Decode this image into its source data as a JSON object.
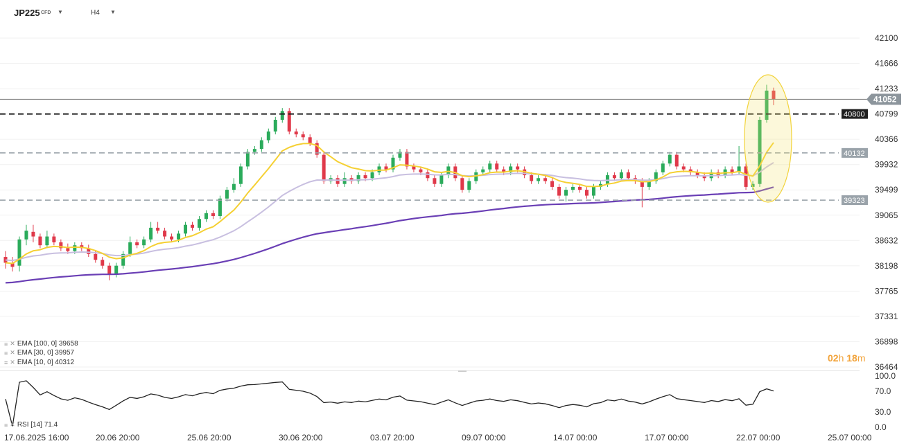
{
  "header": {
    "symbol": "JP225",
    "symbol_type": "CFD",
    "timeframe": "H4"
  },
  "countdown": {
    "hours": "02",
    "h_unit": "h",
    "minutes": "18",
    "m_unit": "m"
  },
  "indicators": [
    {
      "label": "EMA [100, 0] 39658",
      "color": "#6a3fb5"
    },
    {
      "label": "EMA [30, 0] 39957",
      "color": "#c8bfe0"
    },
    {
      "label": "EMA [10, 0] 40312",
      "color": "#f5d033"
    }
  ],
  "rsi_label": "RSI [14] 71.4",
  "colors": {
    "up": "#2bab5b",
    "down": "#e0394a",
    "ema10": "#f5d033",
    "ema30": "#c8bfe0",
    "ema100": "#6a3fb5",
    "highlight": "#f5e36b"
  },
  "chart_data": {
    "type": "candlestick",
    "price_axis_ticks": [
      "42100",
      "41666",
      "41233",
      "40799",
      "40366",
      "39932",
      "39499",
      "39065",
      "38632",
      "38198",
      "37765",
      "37331",
      "36898",
      "36464"
    ],
    "ylim": [
      36464,
      42100
    ],
    "time_axis_labels": [
      "17.06.2025 16:00",
      "20.06 20:00",
      "25.06 20:00",
      "30.06 20:00",
      "03.07 20:00",
      "09.07 00:00",
      "14.07 00:00",
      "17.07 00:00",
      "22.07 00:00",
      "25.07 00:00"
    ],
    "current_price": "41052",
    "levels": [
      {
        "value": 40800,
        "label": "40800",
        "style": "dark-dashed"
      },
      {
        "value": 40132,
        "label": "40132",
        "style": "grey-dashed"
      },
      {
        "value": 39323,
        "label": "39323",
        "style": "grey-dashed"
      }
    ],
    "ohlc": [
      [
        38350,
        38250,
        38450,
        38150
      ],
      [
        38250,
        38180,
        38350,
        38100
      ],
      [
        38200,
        38650,
        38700,
        38100
      ],
      [
        38650,
        38800,
        38900,
        38550
      ],
      [
        38780,
        38700,
        38900,
        38600
      ],
      [
        38700,
        38550,
        38750,
        38500
      ],
      [
        38550,
        38700,
        38800,
        38500
      ],
      [
        38700,
        38600,
        38750,
        38550
      ],
      [
        38600,
        38500,
        38650,
        38450
      ],
      [
        38500,
        38450,
        38580,
        38400
      ],
      [
        38450,
        38550,
        38600,
        38400
      ],
      [
        38550,
        38500,
        38600,
        38450
      ],
      [
        38500,
        38400,
        38560,
        38350
      ],
      [
        38400,
        38300,
        38450,
        38250
      ],
      [
        38300,
        38200,
        38350,
        38150
      ],
      [
        38200,
        38050,
        38250,
        37950
      ],
      [
        38050,
        38200,
        38250,
        38000
      ],
      [
        38200,
        38400,
        38450,
        38150
      ],
      [
        38400,
        38600,
        38700,
        38350
      ],
      [
        38600,
        38550,
        38650,
        38500
      ],
      [
        38550,
        38650,
        38700,
        38500
      ],
      [
        38650,
        38850,
        38950,
        38600
      ],
      [
        38850,
        38800,
        38950,
        38750
      ],
      [
        38800,
        38700,
        38850,
        38650
      ],
      [
        38700,
        38650,
        38750,
        38600
      ],
      [
        38650,
        38750,
        38800,
        38600
      ],
      [
        38750,
        38900,
        38950,
        38700
      ],
      [
        38900,
        38850,
        38950,
        38800
      ],
      [
        38850,
        39000,
        39050,
        38800
      ],
      [
        39000,
        39100,
        39150,
        38950
      ],
      [
        39100,
        39050,
        39150,
        39000
      ],
      [
        39050,
        39350,
        39400,
        39000
      ],
      [
        39350,
        39500,
        39550,
        39300
      ],
      [
        39500,
        39600,
        39700,
        39450
      ],
      [
        39600,
        39900,
        39950,
        39550
      ],
      [
        39900,
        40150,
        40200,
        39850
      ],
      [
        40150,
        40200,
        40250,
        40100
      ],
      [
        40200,
        40350,
        40400,
        40150
      ],
      [
        40350,
        40500,
        40550,
        40300
      ],
      [
        40500,
        40700,
        40750,
        40450
      ],
      [
        40700,
        40850,
        40900,
        40650
      ],
      [
        40850,
        40500,
        40900,
        40450
      ],
      [
        40500,
        40450,
        40550,
        40400
      ],
      [
        40450,
        40400,
        40500,
        40350
      ],
      [
        40400,
        40300,
        40450,
        40250
      ],
      [
        40300,
        40100,
        40350,
        40050
      ],
      [
        40100,
        39650,
        40150,
        39600
      ],
      [
        39650,
        39700,
        39750,
        39600
      ],
      [
        39700,
        39600,
        39750,
        39550
      ],
      [
        39600,
        39700,
        39800,
        39550
      ],
      [
        39700,
        39650,
        39750,
        39600
      ],
      [
        39650,
        39750,
        39800,
        39600
      ],
      [
        39750,
        39700,
        39800,
        39650
      ],
      [
        39700,
        39800,
        39850,
        39650
      ],
      [
        39800,
        39900,
        39950,
        39750
      ],
      [
        39900,
        39850,
        39950,
        39800
      ],
      [
        39850,
        40050,
        40100,
        39800
      ],
      [
        40050,
        40150,
        40200,
        40000
      ],
      [
        40150,
        39900,
        40200,
        39850
      ],
      [
        39900,
        39850,
        39950,
        39800
      ],
      [
        39850,
        39800,
        39900,
        39750
      ],
      [
        39800,
        39700,
        39850,
        39650
      ],
      [
        39700,
        39600,
        39750,
        39550
      ],
      [
        39600,
        39750,
        39800,
        39550
      ],
      [
        39750,
        39900,
        39950,
        39700
      ],
      [
        39900,
        39700,
        39950,
        39650
      ],
      [
        39700,
        39500,
        39750,
        39450
      ],
      [
        39500,
        39650,
        39700,
        39450
      ],
      [
        39650,
        39800,
        39850,
        39600
      ],
      [
        39800,
        39850,
        39900,
        39750
      ],
      [
        39850,
        39950,
        40000,
        39800
      ],
      [
        39950,
        39850,
        40000,
        39800
      ],
      [
        39850,
        39800,
        39900,
        39750
      ],
      [
        39800,
        39900,
        39950,
        39750
      ],
      [
        39900,
        39850,
        39950,
        39800
      ],
      [
        39850,
        39750,
        39900,
        39700
      ],
      [
        39750,
        39650,
        39800,
        39600
      ],
      [
        39650,
        39700,
        39750,
        39600
      ],
      [
        39700,
        39650,
        39750,
        39600
      ],
      [
        39650,
        39550,
        39700,
        39500
      ],
      [
        39550,
        39400,
        39600,
        39350
      ],
      [
        39400,
        39500,
        39550,
        39300
      ],
      [
        39500,
        39550,
        39600,
        39450
      ],
      [
        39550,
        39500,
        39600,
        39450
      ],
      [
        39500,
        39400,
        39550,
        39350
      ],
      [
        39400,
        39550,
        39600,
        39350
      ],
      [
        39550,
        39600,
        39650,
        39500
      ],
      [
        39600,
        39750,
        39800,
        39550
      ],
      [
        39750,
        39700,
        39800,
        39650
      ],
      [
        39700,
        39800,
        39850,
        39650
      ],
      [
        39800,
        39700,
        39850,
        39650
      ],
      [
        39700,
        39650,
        39750,
        39600
      ],
      [
        39650,
        39550,
        39700,
        39200
      ],
      [
        39550,
        39650,
        39700,
        39500
      ],
      [
        39650,
        39800,
        39850,
        39600
      ],
      [
        39800,
        39950,
        40000,
        39750
      ],
      [
        39950,
        40100,
        40150,
        39900
      ],
      [
        40100,
        39900,
        40150,
        39850
      ],
      [
        39900,
        39850,
        39950,
        39800
      ],
      [
        39850,
        39800,
        39900,
        39750
      ],
      [
        39800,
        39750,
        39850,
        39700
      ],
      [
        39750,
        39700,
        39800,
        39650
      ],
      [
        39700,
        39800,
        39850,
        39650
      ],
      [
        39800,
        39750,
        39850,
        39700
      ],
      [
        39750,
        39850,
        39900,
        39700
      ],
      [
        39850,
        39800,
        39900,
        39750
      ],
      [
        39800,
        39900,
        40250,
        39750
      ],
      [
        39900,
        39550,
        39950,
        39500
      ],
      [
        39550,
        39600,
        39650,
        39500
      ],
      [
        39600,
        40700,
        40750,
        39550
      ],
      [
        40700,
        41200,
        41300,
        40650
      ],
      [
        41200,
        41052,
        41250,
        40950
      ]
    ]
  }
}
